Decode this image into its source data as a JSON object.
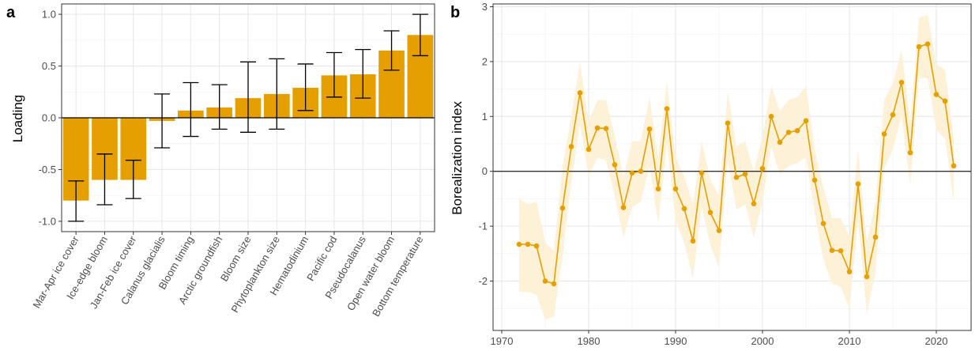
{
  "chart_data": [
    {
      "panel_label": "a",
      "type": "bar",
      "ylabel": "Loading",
      "ylim": [
        -1.1,
        1.1
      ],
      "yticks": [
        "-1.0",
        "-0.5",
        "0.0",
        "0.5",
        "1.0"
      ],
      "grid": true,
      "bar_color": "#e69f00",
      "categories": [
        "Mar-Apr ice cover",
        "Ice-edge bloom",
        "Jan-Feb ice cover",
        "Calanus glacialis",
        "Bloom timing",
        "Arctic groundfish",
        "Bloom size",
        "Phytoplankton size",
        "Hematodinium",
        "Pacific cod",
        "Pseudocalanus",
        "Open water bloom",
        "Bottom temperature"
      ],
      "values": [
        -0.8,
        -0.6,
        -0.6,
        -0.03,
        0.07,
        0.1,
        0.19,
        0.23,
        0.29,
        0.41,
        0.42,
        0.65,
        0.8
      ],
      "error_low": [
        -1.0,
        -0.84,
        -0.78,
        -0.29,
        -0.18,
        -0.11,
        -0.14,
        -0.11,
        0.07,
        0.2,
        0.19,
        0.46,
        0.6
      ],
      "error_high": [
        -0.61,
        -0.35,
        -0.41,
        0.23,
        0.34,
        0.32,
        0.54,
        0.57,
        0.52,
        0.63,
        0.66,
        0.84,
        1.0
      ]
    },
    {
      "panel_label": "b",
      "type": "line",
      "ylabel": "Borealization index",
      "xlim": [
        1969,
        2024
      ],
      "ylim": [
        -2.9,
        3.05
      ],
      "xticks": [
        "1970",
        "1980",
        "1990",
        "2000",
        "2010",
        "2020"
      ],
      "yticks": [
        "-2",
        "-1",
        "0",
        "1",
        "2",
        "3"
      ],
      "grid": true,
      "line_color": "#e69f00",
      "band_color": "#fdf0d5",
      "x": [
        1972,
        1973,
        1974,
        1975,
        1976,
        1977,
        1978,
        1979,
        1980,
        1981,
        1982,
        1983,
        1984,
        1985,
        1986,
        1987,
        1988,
        1989,
        1990,
        1991,
        1992,
        1993,
        1994,
        1995,
        1996,
        1997,
        1998,
        1999,
        2000,
        2001,
        2002,
        2003,
        2004,
        2005,
        2006,
        2007,
        2008,
        2009,
        2010,
        2011,
        2012,
        2013,
        2014,
        2015,
        2016,
        2017,
        2018,
        2019,
        2020,
        2021,
        2022
      ],
      "y": [
        -1.33,
        -1.33,
        -1.36,
        -2.0,
        -2.05,
        -0.67,
        0.45,
        1.43,
        0.4,
        0.79,
        0.78,
        0.12,
        -0.66,
        -0.03,
        0.0,
        0.77,
        -0.32,
        1.14,
        -0.32,
        -0.68,
        -1.27,
        -0.03,
        -0.75,
        -1.08,
        0.88,
        -0.11,
        -0.05,
        -0.59,
        0.05,
        1.0,
        0.53,
        0.71,
        0.74,
        0.92,
        -0.16,
        -0.95,
        -1.44,
        -1.45,
        -1.83,
        -0.23,
        -1.92,
        -1.2,
        0.68,
        1.03,
        1.62,
        0.34,
        2.27,
        2.32,
        1.4,
        1.28,
        0.1
      ],
      "band_low": [
        -2.2,
        -2.2,
        -2.25,
        -2.7,
        -2.65,
        -1.5,
        -0.2,
        0.85,
        -0.1,
        0.25,
        0.2,
        -0.45,
        -1.2,
        -0.65,
        -0.55,
        0.1,
        -0.95,
        0.5,
        -0.9,
        -1.3,
        -1.95,
        -0.65,
        -1.35,
        -1.75,
        0.2,
        -0.7,
        -0.6,
        -1.2,
        -0.55,
        0.45,
        -0.05,
        0.1,
        0.15,
        0.25,
        -0.75,
        -1.6,
        -2.05,
        -2.1,
        -2.5,
        -0.9,
        -2.6,
        -1.85,
        0.05,
        0.4,
        1.0,
        -0.25,
        1.7,
        1.7,
        0.75,
        0.6,
        -0.55
      ],
      "band_high": [
        -0.5,
        -0.6,
        -0.55,
        -1.3,
        -1.45,
        0.1,
        1.0,
        2.0,
        0.9,
        1.3,
        1.3,
        0.65,
        -0.1,
        0.55,
        0.55,
        1.35,
        0.25,
        1.65,
        0.25,
        -0.1,
        -0.6,
        0.55,
        -0.15,
        -0.45,
        1.45,
        0.45,
        0.55,
        0.0,
        0.65,
        1.55,
        1.1,
        1.3,
        1.35,
        1.55,
        0.4,
        -0.3,
        -0.85,
        -0.85,
        -1.2,
        0.4,
        -1.3,
        -0.55,
        1.3,
        1.6,
        2.2,
        0.9,
        2.8,
        2.85,
        1.95,
        1.85,
        0.6
      ]
    }
  ]
}
